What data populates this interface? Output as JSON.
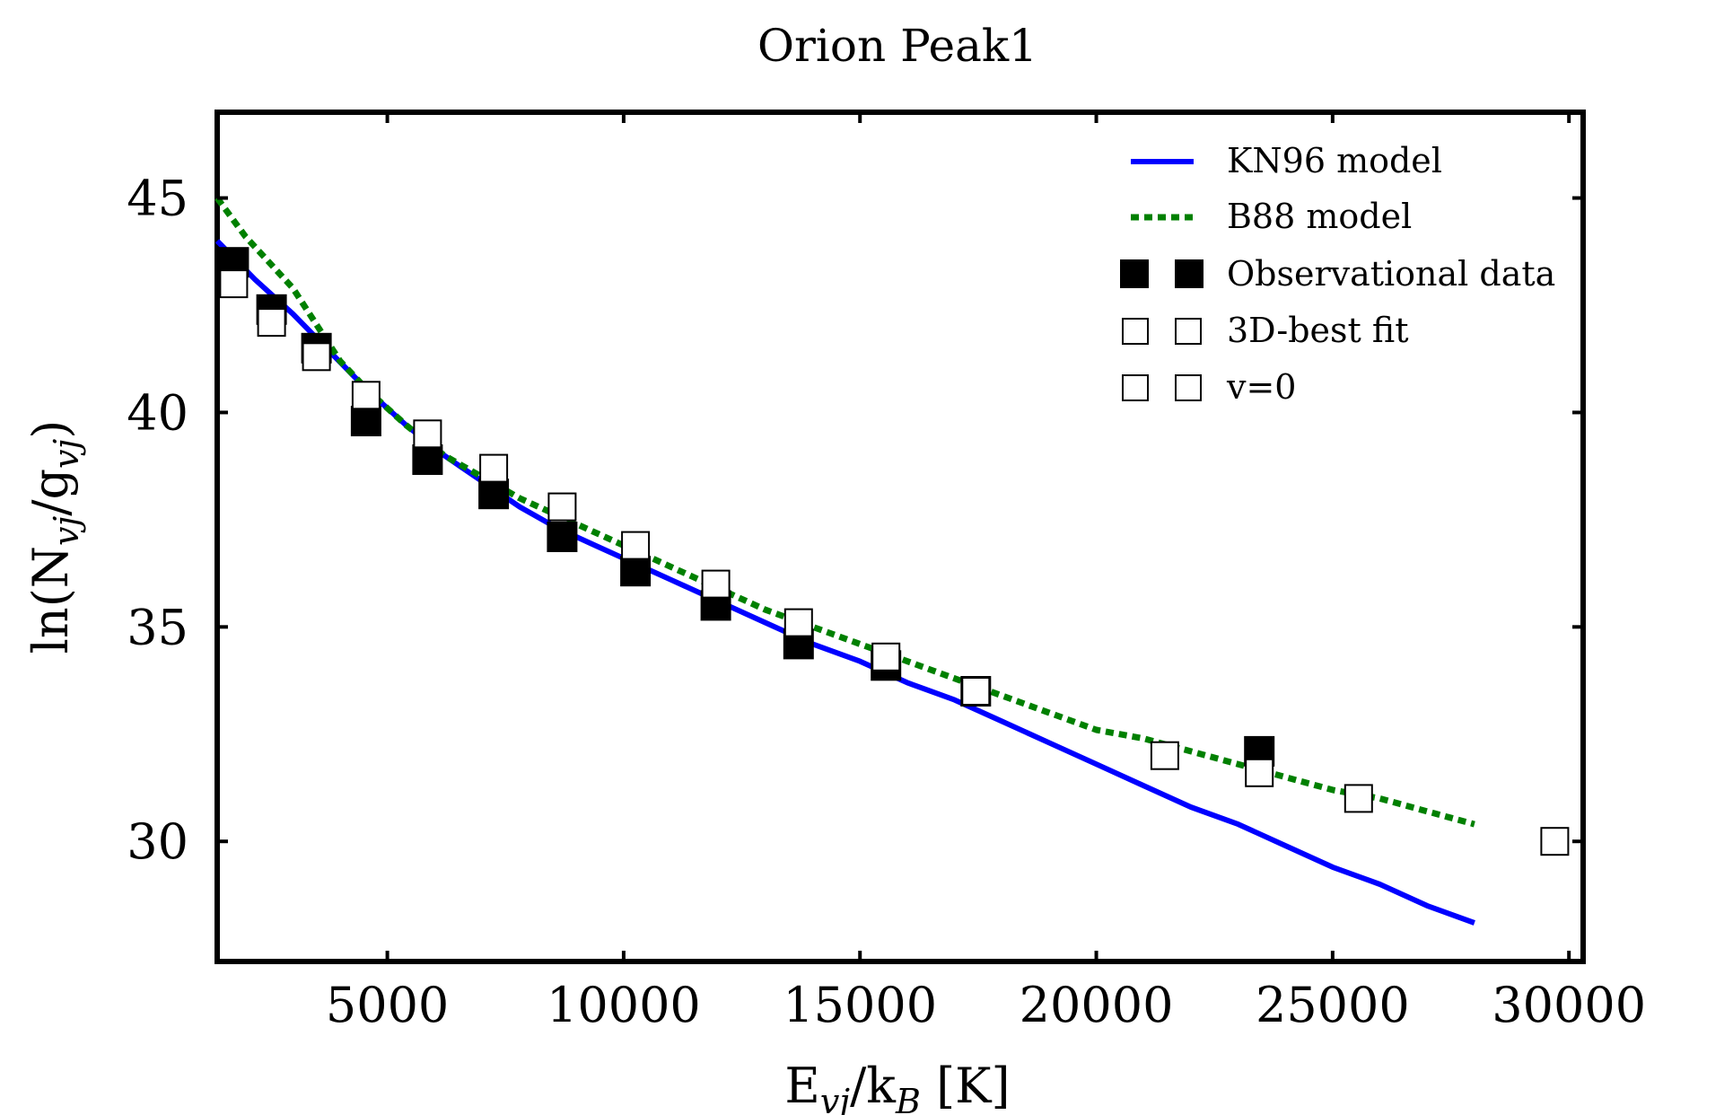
{
  "chart_data": {
    "type": "scatter",
    "title": "Orion Peak1",
    "xlabel": {
      "base": "E",
      "sub": "vj",
      "mid": "/k",
      "sub2": "B",
      "tail": " [K]"
    },
    "ylabel": {
      "pre": "ln(N",
      "sub": "vj",
      "mid": "/g",
      "sub2": "vj",
      "tail": ")"
    },
    "xlim": [
      1400,
      30300
    ],
    "ylim": [
      27.2,
      47.0
    ],
    "x_ticks": [
      5000,
      10000,
      15000,
      20000,
      25000,
      30000
    ],
    "y_ticks": [
      30,
      35,
      40,
      45
    ],
    "legend_position": "top-right",
    "legend": [
      "KN96 model",
      "B88 model",
      "Observational data",
      "3D-best fit",
      "v=0"
    ],
    "colors": {
      "kn96": "#0000ff",
      "b88": "#008000",
      "observed": "#000000",
      "fit": "#ffffff"
    },
    "series": [
      {
        "name": "KN96 model",
        "style": "line",
        "x": [
          1400,
          2200,
          3000,
          3800,
          4600,
          5400,
          6200,
          7000,
          7800,
          8600,
          9400,
          10200,
          11000,
          12000,
          13000,
          14000,
          15000,
          16000,
          17000,
          18000,
          19000,
          20000,
          21000,
          22000,
          23000,
          24000,
          25000,
          26000,
          27000,
          28000
        ],
        "y": [
          44.0,
          43.1,
          42.3,
          41.4,
          40.5,
          39.7,
          39.0,
          38.4,
          37.8,
          37.3,
          36.9,
          36.5,
          36.1,
          35.6,
          35.1,
          34.6,
          34.2,
          33.7,
          33.3,
          32.8,
          32.3,
          31.8,
          31.3,
          30.8,
          30.4,
          29.9,
          29.4,
          29.0,
          28.5,
          28.1
        ]
      },
      {
        "name": "B88 model",
        "style": "dotted",
        "x": [
          1400,
          2000,
          3000,
          4000,
          4600,
          5400,
          6200,
          7000,
          7800,
          8600,
          9400,
          10200,
          11000,
          12000,
          13000,
          14000,
          15000,
          16000,
          17000,
          18000,
          19000,
          20000,
          21000,
          22000,
          23000,
          24000,
          25000,
          26000,
          27000,
          28000
        ],
        "y": [
          45.0,
          44.1,
          42.9,
          41.2,
          40.5,
          39.7,
          39.0,
          38.5,
          38.0,
          37.6,
          37.2,
          36.8,
          36.4,
          35.9,
          35.4,
          35.0,
          34.6,
          34.2,
          33.8,
          33.4,
          33.0,
          32.6,
          32.4,
          32.1,
          31.8,
          31.5,
          31.2,
          31.0,
          30.7,
          30.4
        ]
      },
      {
        "name": "Observational data",
        "style": "filled-square",
        "x": [
          1750,
          2550,
          3500,
          4550,
          5850,
          7250,
          8700,
          10250,
          11950,
          13700,
          15550,
          17450,
          23450
        ],
        "y": [
          43.5,
          42.4,
          41.5,
          39.8,
          38.9,
          38.1,
          37.1,
          36.3,
          35.5,
          34.6,
          34.1,
          33.5,
          32.1
        ]
      },
      {
        "name": "3D-best fit",
        "style": "open-square",
        "x": [
          1750,
          2550,
          3500,
          4550,
          5850,
          7250,
          8700,
          10250,
          11950,
          13700,
          15550,
          17450,
          21450,
          23450,
          25550,
          29700
        ],
        "y": [
          43.0,
          42.1,
          41.3,
          40.4,
          39.5,
          38.7,
          37.8,
          36.9,
          36.0,
          35.1,
          34.3,
          33.5,
          32.0,
          31.6,
          31.0,
          30.0
        ]
      },
      {
        "name": "v=0",
        "style": "open-square",
        "x": [],
        "y": []
      }
    ]
  }
}
